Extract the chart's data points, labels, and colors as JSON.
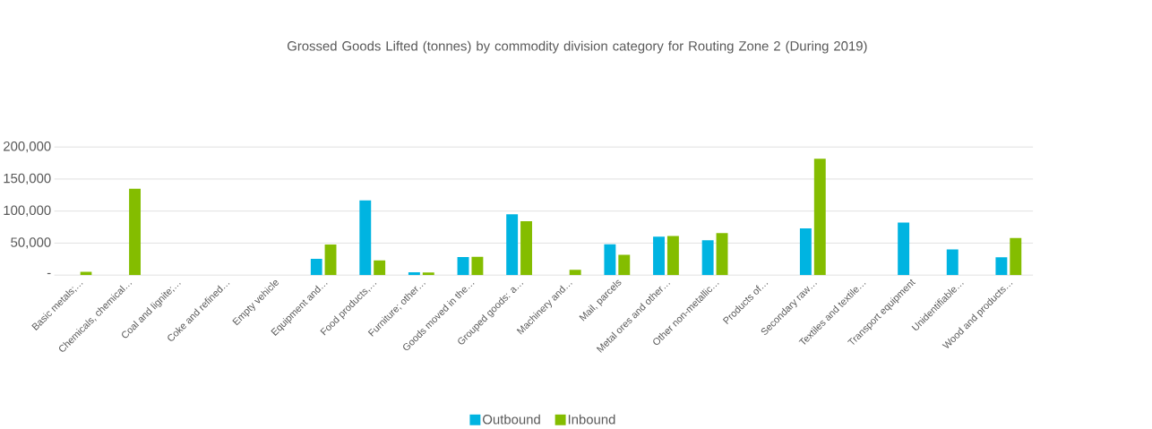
{
  "chart_data": {
    "type": "bar",
    "title": "Grossed Goods Lifted (tonnes) by commodity division category for Routing Zone 2 (During 2019)",
    "categories": [
      "Basic metals;…",
      "Chemicals, chemical…",
      "Coal and lignite;…",
      "Coke and refined…",
      "Empty vehicle",
      "Equipment and…",
      "Food products,…",
      "Furniture; other…",
      "Goods moved in the…",
      "Grouped goods: a…",
      "Machinery and…",
      "Mail, parcels",
      "Metal ores and other…",
      "Other non-metallic…",
      "Products of…",
      "Secondary raw…",
      "Textiles and textile…",
      "Transport equipment",
      "Unidentifiable…",
      "Wood and products…"
    ],
    "series": [
      {
        "name": "Outbound",
        "color": "#00b4e1",
        "values": [
          null,
          null,
          null,
          null,
          null,
          25500,
          117000,
          4400,
          28300,
          95000,
          null,
          48300,
          60000,
          54400,
          null,
          72800,
          null,
          82200,
          40000,
          27800
        ]
      },
      {
        "name": "Inbound",
        "color": "#84bd00",
        "values": [
          5000,
          135000,
          null,
          null,
          null,
          47800,
          22800,
          4000,
          28700,
          84000,
          8300,
          31700,
          61000,
          65600,
          null,
          181700,
          null,
          null,
          null,
          57800
        ]
      }
    ],
    "ylim": [
      0,
      200000
    ],
    "yticks": [
      {
        "value": 0,
        "label": "-"
      },
      {
        "value": 50000,
        "label": "50,000"
      },
      {
        "value": 100000,
        "label": "100,000"
      },
      {
        "value": 150000,
        "label": "150,000"
      },
      {
        "value": 200000,
        "label": "200,000"
      }
    ],
    "grid": "y",
    "legend": "bottom"
  }
}
